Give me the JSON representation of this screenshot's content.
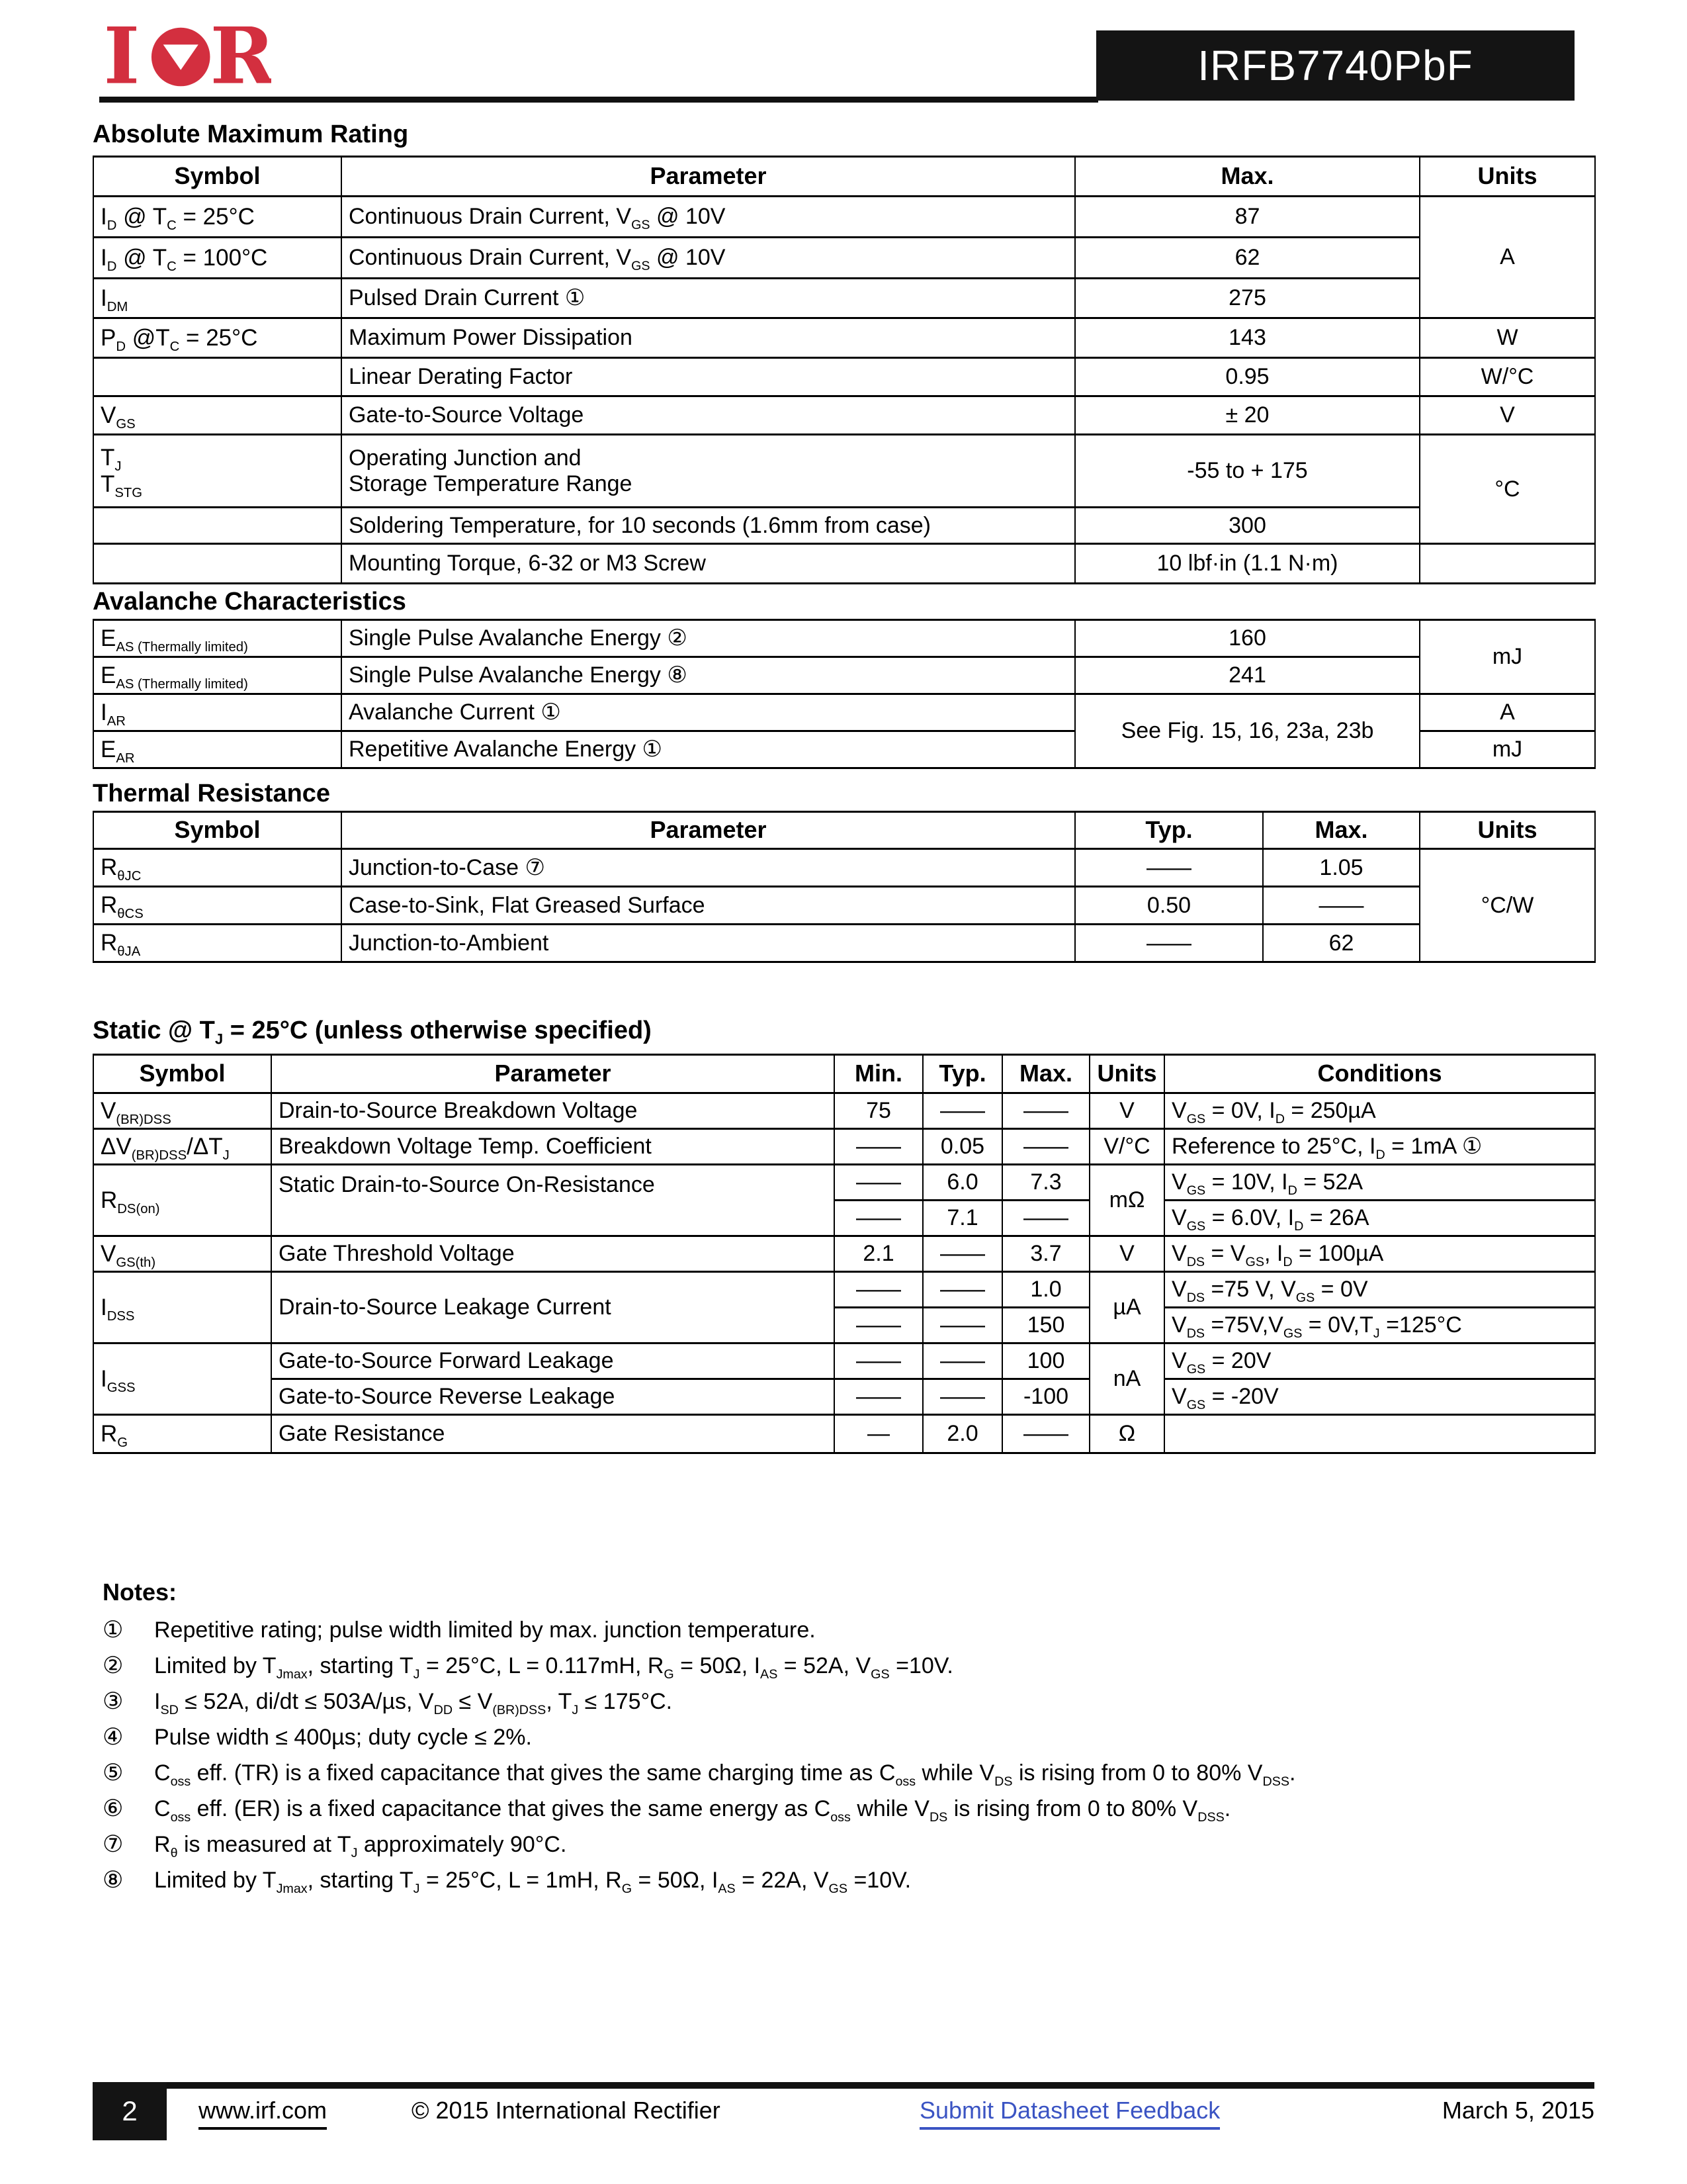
{
  "colors": {
    "brand_red": "#d32f3f",
    "link_blue": "#3b54c3",
    "banner_black": "#141414"
  },
  "header": {
    "part_number": "IRFB7740PbF",
    "logo_name": "International Rectifier IR logo"
  },
  "tables": {
    "abs_max": {
      "title": "Absolute Maximum Rating",
      "headers": [
        "Symbol",
        "Parameter",
        "Max.",
        "Units"
      ],
      "rows": [
        {
          "symbol": "I<sub>D</sub> @ T<sub>C</sub> = 25°C",
          "param": "Continuous Drain Current, V<sub>GS</sub> @ 10V",
          "max": "87",
          "units": "A"
        },
        {
          "symbol": "I<sub>D</sub> @ T<sub>C</sub> = 100°C",
          "param": "Continuous Drain Current, V<sub>GS</sub> @ 10V",
          "max": "62"
        },
        {
          "symbol": "I<sub>DM</sub>",
          "param": "Pulsed Drain Current ①",
          "max": "275"
        },
        {
          "symbol": "P<sub>D</sub> @T<sub>C</sub> = 25°C",
          "param": "Maximum Power Dissipation",
          "max": "143",
          "units": "W"
        },
        {
          "symbol": "",
          "param": "Linear Derating Factor",
          "max": "0.95",
          "units": "W/°C"
        },
        {
          "symbol": "V<sub>GS</sub>",
          "param": "Gate-to-Source Voltage",
          "max": "± 20",
          "units": "V"
        },
        {
          "symbol": "T<sub>J</sub><br>T<sub>STG</sub>",
          "param": "Operating Junction and<br>Storage Temperature Range",
          "max": "-55  to + 175",
          "units": "°C"
        },
        {
          "symbol": "",
          "param": "Soldering Temperature, for 10 seconds (1.6mm from case)",
          "max": "300"
        },
        {
          "symbol": "",
          "param": "Mounting Torque, 6-32 or M3 Screw",
          "max": "10 lbf·in (1.1 N·m)",
          "units": ""
        }
      ]
    },
    "avalanche": {
      "title": "Avalanche Characteristics",
      "rows": [
        {
          "symbol": "E<sub>AS (Thermally limited)</sub>",
          "param": "Single Pulse Avalanche Energy ②",
          "max": "160",
          "units": "mJ"
        },
        {
          "symbol": "E<sub>AS (Thermally limited)</sub>",
          "param": "Single Pulse Avalanche Energy ⑧",
          "max": "241"
        },
        {
          "symbol": "I<sub>AR</sub>",
          "param": "Avalanche Current ①",
          "max": "See Fig. 15, 16, 23a, 23b",
          "units": "A"
        },
        {
          "symbol": "E<sub>AR</sub>",
          "param": "Repetitive Avalanche Energy ①",
          "units": "mJ"
        }
      ]
    },
    "thermal": {
      "title": "Thermal Resistance",
      "headers": [
        "Symbol",
        "Parameter",
        "Typ.",
        "Max.",
        "Units"
      ],
      "rows": [
        {
          "symbol": "R<sub>θJC</sub>",
          "param": "Junction-to-Case ⑦",
          "typ": "——",
          "max": "1.05",
          "units": "°C/W"
        },
        {
          "symbol": "R<sub>θCS</sub>",
          "param": "Case-to-Sink, Flat Greased Surface",
          "typ": "0.50",
          "max": "——"
        },
        {
          "symbol": "R<sub>θJA</sub>",
          "param": "Junction-to-Ambient",
          "typ": "——",
          "max": "62"
        }
      ]
    },
    "static": {
      "title": "Static @ T<sub>J</sub> = 25°C (unless otherwise specified)",
      "headers": [
        "Symbol",
        "Parameter",
        "Min.",
        "Typ.",
        "Max.",
        "Units",
        "Conditions"
      ],
      "rows": [
        {
          "symbol": "V<sub>(BR)DSS</sub>",
          "param": "Drain-to-Source Breakdown Voltage",
          "min": "75",
          "typ": "——",
          "max": "——",
          "units": "V",
          "cond": "V<sub>GS</sub> = 0V, I<sub>D</sub> = 250µA"
        },
        {
          "symbol": "ΔV<sub>(BR)DSS</sub>/ΔT<sub>J</sub>",
          "param": "Breakdown Voltage Temp. Coefficient",
          "min": "——",
          "typ": "0.05",
          "max": "——",
          "units": "V/°C",
          "cond": "Reference to 25°C, I<sub>D</sub> = 1mA ①"
        },
        {
          "symbol": "R<sub>DS(on)</sub>",
          "param": "Static Drain-to-Source On-Resistance",
          "min": "——",
          "typ": "6.0",
          "max": "7.3",
          "units": "mΩ",
          "cond": "V<sub>GS</sub> = 10V, I<sub>D</sub> = 52A"
        },
        {
          "min": "——",
          "typ": "7.1",
          "max": "——",
          "cond": "V<sub>GS</sub> = 6.0V, I<sub>D</sub> = 26A"
        },
        {
          "symbol": "V<sub>GS(th)</sub>",
          "param": "Gate Threshold Voltage",
          "min": "2.1",
          "typ": "——",
          "max": "3.7",
          "units": "V",
          "cond": "V<sub>DS</sub> = V<sub>GS</sub>, I<sub>D</sub> = 100µA"
        },
        {
          "symbol": "I<sub>DSS</sub>",
          "param": "Drain-to-Source Leakage Current",
          "min": "——",
          "typ": "——",
          "max": "1.0",
          "units": "µA",
          "cond": "V<sub>DS</sub> =75 V, V<sub>GS</sub> = 0V"
        },
        {
          "min": "——",
          "typ": "——",
          "max": "150",
          "cond": "V<sub>DS</sub> =75V,V<sub>GS</sub> = 0V,T<sub>J</sub> =125°C"
        },
        {
          "symbol": "I<sub>GSS</sub>",
          "param": "Gate-to-Source Forward Leakage",
          "min": "——",
          "typ": "——",
          "max": "100",
          "units": "nA",
          "cond": "V<sub>GS</sub> = 20V"
        },
        {
          "param": "Gate-to-Source Reverse Leakage",
          "min": "——",
          "typ": "——",
          "max": "-100",
          "cond": "V<sub>GS</sub> = -20V"
        },
        {
          "symbol": "R<sub>G</sub>",
          "param": "Gate Resistance",
          "min": "—",
          "typ": "2.0",
          "max": "——",
          "units": "Ω",
          "cond": ""
        }
      ]
    }
  },
  "notes": {
    "title": "Notes:",
    "items": [
      {
        "mark": "①",
        "text": "Repetitive rating; pulse width limited by max. junction temperature."
      },
      {
        "mark": "②",
        "text": "Limited by T<sub>Jmax</sub>, starting T<sub>J</sub> = 25°C, L = 0.117mH, R<sub>G</sub> = 50Ω, I<sub>AS</sub> = 52A, V<sub>GS</sub> =10V."
      },
      {
        "mark": "③",
        "text": "I<sub>SD</sub> ≤ 52A, di/dt ≤ 503A/µs, V<sub>DD</sub> ≤ V<sub>(BR)DSS</sub>, T<sub>J</sub> ≤ 175°C."
      },
      {
        "mark": "④",
        "text": "Pulse width ≤ 400µs; duty cycle ≤ 2%."
      },
      {
        "mark": "⑤",
        "text": "C<sub>oss</sub> eff. (TR) is a fixed capacitance that gives the same charging time as C<sub>oss</sub> while V<sub>DS</sub> is rising from 0 to 80% V<sub>DSS</sub>."
      },
      {
        "mark": "⑥",
        "text": "C<sub>oss</sub> eff. (ER) is a fixed capacitance that gives the same energy as C<sub>oss</sub> while V<sub>DS</sub> is rising from 0 to 80% V<sub>DSS</sub>."
      },
      {
        "mark": "⑦",
        "text": "R<sub>θ</sub> is measured at T<sub>J</sub> approximately 90°C."
      },
      {
        "mark": "⑧",
        "text": "Limited by T<sub>Jmax</sub>, starting T<sub>J</sub> = 25°C, L = 1mH, R<sub>G</sub> = 50Ω, I<sub>AS</sub> = 22A, V<sub>GS</sub> =10V."
      }
    ]
  },
  "footer": {
    "page_number": "2",
    "website": "www.irf.com",
    "copyright": "© 2015 International Rectifier",
    "feedback_link": "Submit Datasheet Feedback",
    "date": "March 5, 2015"
  }
}
